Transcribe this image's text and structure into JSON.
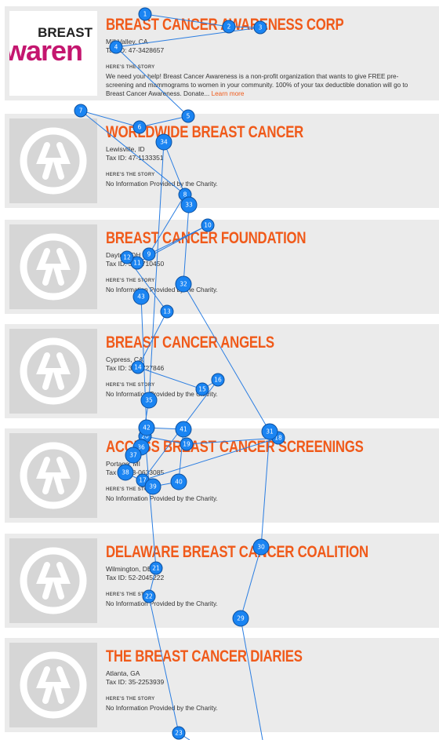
{
  "cards": [
    {
      "title": "BREAST CANCER AWARENESS CORP",
      "location": "Mill Valley, CA",
      "tax_id": "Tax ID: 47-3428657",
      "story_heading": "HERE'S THE STORY",
      "story": "We need your help! Breast Cancer Awareness is a non-profit organization that wants to give FREE pre-screening and mammograms to women in your community.   100% of your tax deductible donation will go to Breast Cancer Awareness. Donate...",
      "link": "Learn more",
      "logo_lines": [
        "BREAST",
        "waren"
      ]
    },
    {
      "title": "WORLDWIDE BREAST CANCER",
      "location": "Lewisville, ID",
      "tax_id": "Tax ID: 47-1133351",
      "story_heading": "HERE'S THE STORY",
      "story": "No Information Provided by the Charity."
    },
    {
      "title": "BREAST CANCER FOUNDATION",
      "location": "Dayton, OH",
      "tax_id": "Tax ID: 31-1710450",
      "story_heading": "HERE'S THE STORY",
      "story": "No Information Provided by the Charity."
    },
    {
      "title": "BREAST CANCER ANGELS",
      "location": "Cypress, CA",
      "tax_id": "Tax ID: 33-0727846",
      "story_heading": "HERE'S THE STORY",
      "story": "No Information Provided by the Charity."
    },
    {
      "title": "ACCESS BREAST CANCER SCREENINGS",
      "location": "Portage, MI",
      "tax_id": "Tax ID: 38-0633085",
      "story_heading": "HERE'S THE STORY",
      "story": "No Information Provided by the Charity."
    },
    {
      "title": "DELAWARE BREAST CANCER COALITION",
      "location": "Wilmington, DE",
      "tax_id": "Tax ID: 52-2045222",
      "story_heading": "HERE'S THE STORY",
      "story": "No Information Provided by the Charity."
    },
    {
      "title": "THE BREAST CANCER DIARIES",
      "location": "Atlanta, GA",
      "tax_id": "Tax ID: 35-2253939",
      "story_heading": "HERE'S THE STORY",
      "story": "No Information Provided by the Charity."
    }
  ],
  "overlay": {
    "markers": [
      1,
      2,
      3,
      4,
      5,
      6,
      7,
      8,
      9,
      10,
      11,
      12,
      13,
      14,
      15,
      16,
      17,
      18,
      19,
      20,
      21,
      22,
      23,
      29,
      30,
      31,
      32,
      33,
      34,
      35,
      36,
      37,
      38,
      39,
      40,
      41,
      42,
      43
    ]
  }
}
